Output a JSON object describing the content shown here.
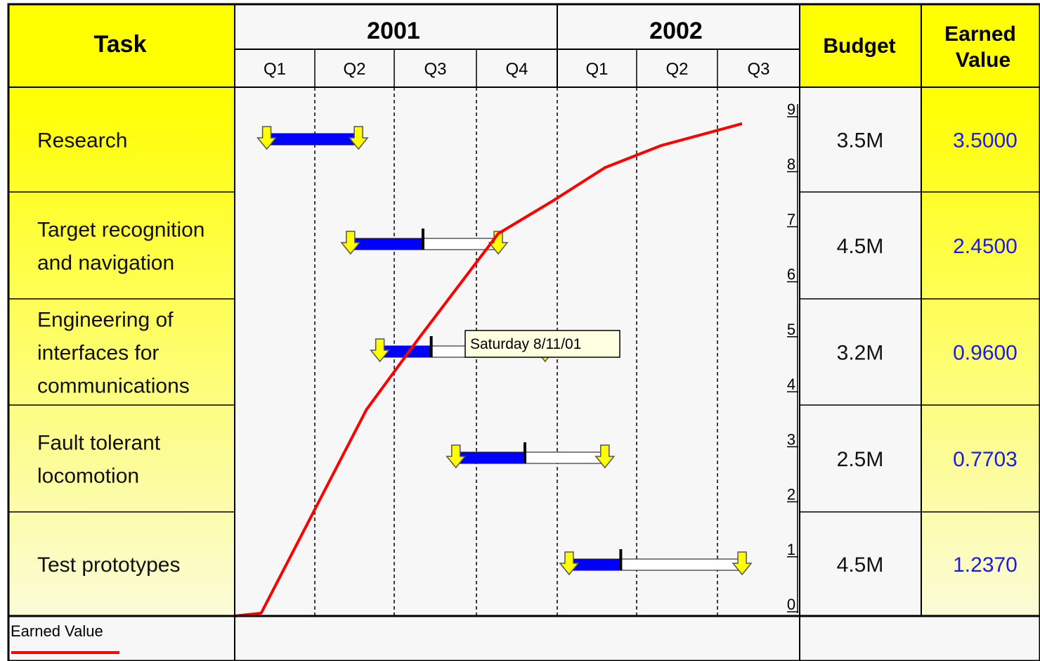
{
  "header": {
    "task": "Task",
    "years": [
      "2001",
      "2002"
    ],
    "quarters": [
      "Q1",
      "Q2",
      "Q3",
      "Q4",
      "Q1",
      "Q2",
      "Q3"
    ],
    "budget": "Budget",
    "earned_value_line1": "Earned",
    "earned_value_line2": "Value"
  },
  "tasks": [
    {
      "name_lines": [
        "Research"
      ],
      "budget": "3.5M",
      "earned_value": "3.5000",
      "start_q": 0.4,
      "end_q": 1.55,
      "progress_q": 1.55
    },
    {
      "name_lines": [
        "Target recognition",
        "and navigation"
      ],
      "budget": "4.5M",
      "earned_value": "2.4500",
      "start_q": 1.45,
      "end_q": 3.27,
      "progress_q": 2.35
    },
    {
      "name_lines": [
        "Engineering of",
        "interfaces for",
        "communications"
      ],
      "budget": "3.2M",
      "earned_value": "0.9600",
      "start_q": 1.82,
      "end_q": 3.85,
      "progress_q": 2.45
    },
    {
      "name_lines": [
        "Fault tolerant",
        "locomotion"
      ],
      "budget": "2.5M",
      "earned_value": "0.7703",
      "start_q": 2.75,
      "end_q": 4.6,
      "progress_q": 3.6
    },
    {
      "name_lines": [
        "Test prototypes"
      ],
      "budget": "4.5M",
      "earned_value": "1.2370",
      "start_q": 4.15,
      "end_q": 6.3,
      "progress_q": 4.8
    }
  ],
  "tooltip": "Saturday 8/11/01",
  "legend": {
    "label": "Earned Value",
    "color": "#ff0000"
  },
  "colors": {
    "header_yellow": "#ffff00",
    "bar_done": "#0000ff",
    "arrow_yellow": "#ffff00",
    "line": "#ff0000"
  },
  "chart_data": {
    "type": "line",
    "series": [
      {
        "name": "Earned Value",
        "x_quarters": [
          0.33,
          1.65,
          2.3,
          3.27,
          3.95,
          4.6,
          5.3,
          6.3
        ],
        "values": [
          0,
          3.7,
          5.0,
          6.9,
          7.5,
          8.1,
          8.5,
          8.9
        ]
      }
    ],
    "ylim": [
      0,
      9
    ],
    "yticks": [
      0,
      1,
      2,
      3,
      4,
      5,
      6,
      7,
      8,
      9
    ],
    "x_categories": [
      "Q1 2001",
      "Q2 2001",
      "Q3 2001",
      "Q4 2001",
      "Q1 2002",
      "Q2 2002",
      "Q3 2002"
    ]
  }
}
